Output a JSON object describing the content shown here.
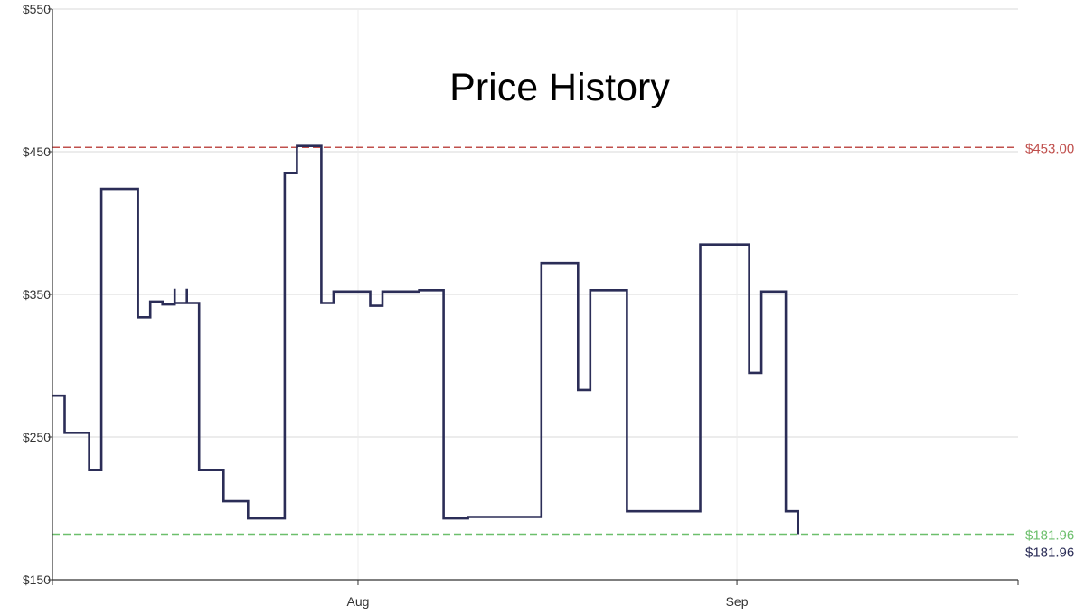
{
  "chart_data": {
    "type": "line",
    "step": true,
    "title": "Price History",
    "xlabel": "",
    "ylabel": "",
    "x_range": [
      "2024-07-07",
      "2024-09-24"
    ],
    "ylim": [
      150,
      550
    ],
    "y_ticks": [
      {
        "value": 150,
        "label": "$150"
      },
      {
        "value": 250,
        "label": "$250"
      },
      {
        "value": 350,
        "label": "$350"
      },
      {
        "value": 450,
        "label": "$450"
      },
      {
        "value": 550,
        "label": "$550"
      }
    ],
    "x_ticks": [
      {
        "value": "2024-08-01",
        "label": "Aug"
      },
      {
        "value": "2024-09-01",
        "label": "Sep"
      }
    ],
    "grid": true,
    "series": [
      {
        "points": [
          [
            "2024-07-07",
            279
          ],
          [
            "2024-07-08",
            253
          ],
          [
            "2024-07-10",
            227
          ],
          [
            "2024-07-11",
            424
          ],
          [
            "2024-07-14",
            334
          ],
          [
            "2024-07-15",
            345
          ],
          [
            "2024-07-16",
            343
          ],
          [
            "2024-07-17",
            354
          ],
          [
            "2024-07-17",
            344
          ],
          [
            "2024-07-18",
            354
          ],
          [
            "2024-07-18",
            344
          ],
          [
            "2024-07-19",
            227
          ],
          [
            "2024-07-21",
            205
          ],
          [
            "2024-07-23",
            193
          ],
          [
            "2024-07-26",
            435
          ],
          [
            "2024-07-27",
            454
          ],
          [
            "2024-07-29",
            344
          ],
          [
            "2024-07-30",
            352
          ],
          [
            "2024-08-02",
            344
          ],
          [
            "2024-08-02",
            342
          ],
          [
            "2024-08-03",
            352
          ],
          [
            "2024-08-06",
            353
          ],
          [
            "2024-08-08",
            193
          ],
          [
            "2024-08-10",
            194
          ],
          [
            "2024-08-16",
            372
          ],
          [
            "2024-08-19",
            283
          ],
          [
            "2024-08-20",
            353
          ],
          [
            "2024-08-23",
            198
          ],
          [
            "2024-08-29",
            385
          ],
          [
            "2024-09-02",
            295
          ],
          [
            "2024-09-03",
            352
          ],
          [
            "2024-09-05",
            198
          ],
          [
            "2024-09-06",
            181.96
          ]
        ],
        "color": "#2b2d57"
      }
    ],
    "reference_lines": [
      {
        "value": 453.0,
        "label": "$453.00",
        "color": "#c0504d",
        "style": "dashed"
      },
      {
        "value": 181.96,
        "label": "$181.96",
        "color": "#6cbf6c",
        "style": "dashed"
      }
    ],
    "current_price_label": "$181.96"
  }
}
